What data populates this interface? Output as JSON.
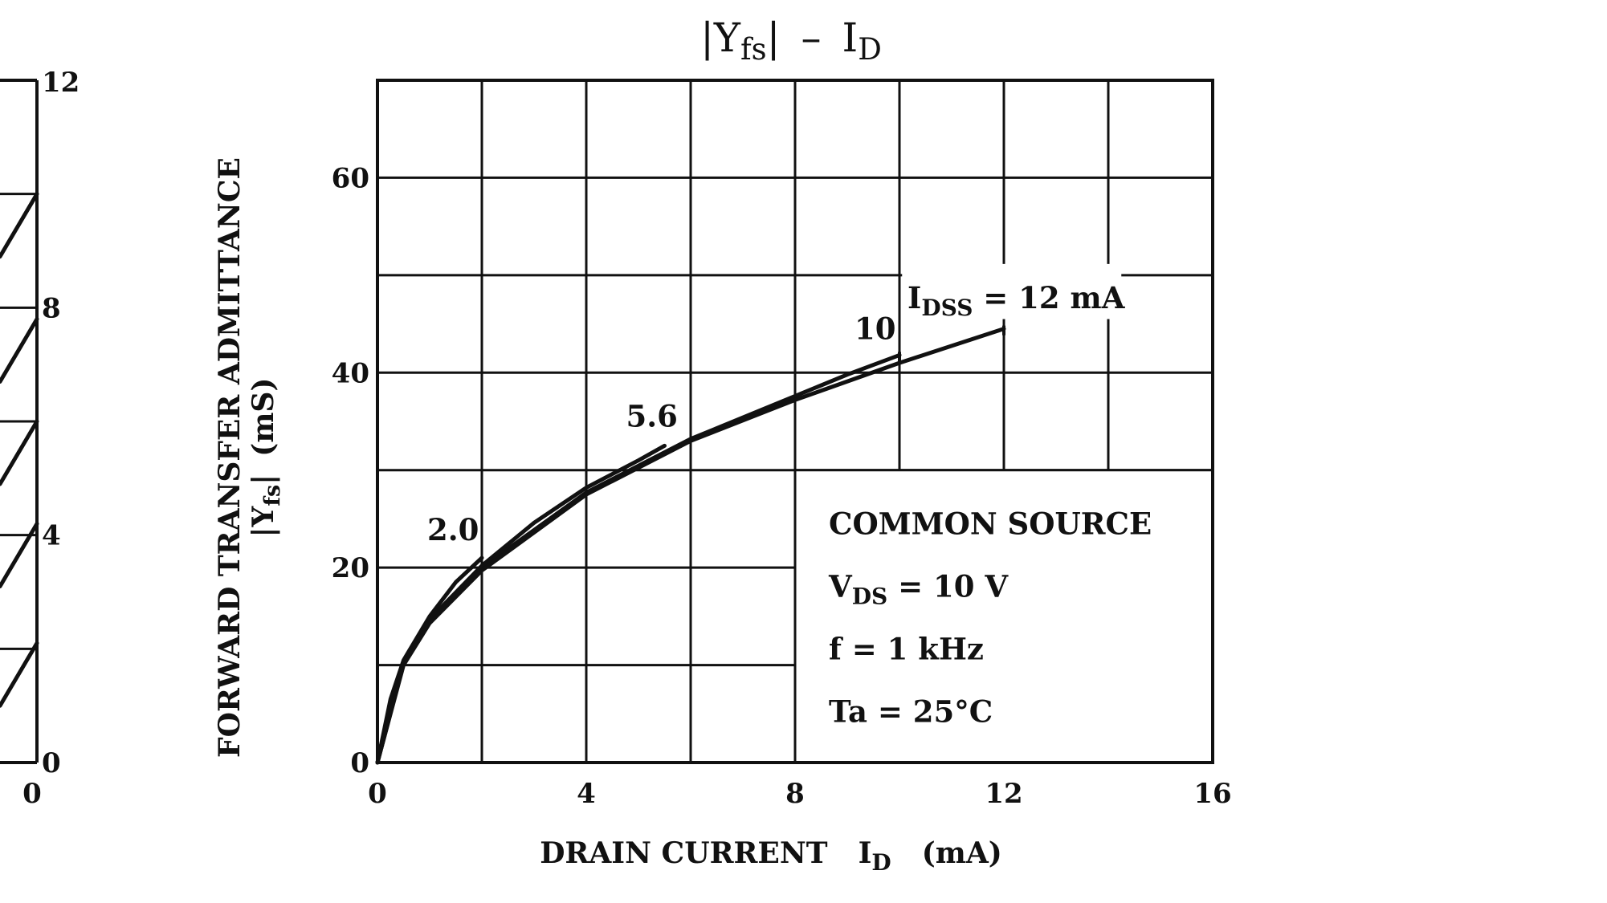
{
  "chart_data": {
    "type": "line",
    "title": "|Yfs| – ID",
    "title_parts": {
      "main": "|Y",
      "main_sub": "fs",
      "close": "|",
      "dash": "–",
      "right": "I",
      "right_sub": "D"
    },
    "xlabel_parts": {
      "text": "DRAIN CURRENT",
      "sym": "I",
      "sym_sub": "D",
      "unit": "(mA)"
    },
    "ylabel_parts": {
      "line1": "FORWARD TRANSFER ADMITTANCE",
      "sym": "|Y",
      "sym_sub": "fs",
      "sym_close": "|",
      "unit": "(mS)"
    },
    "xlim": [
      0,
      16
    ],
    "ylim": [
      0,
      70
    ],
    "x_ticks": [
      "0",
      "4",
      "8",
      "12",
      "16"
    ],
    "y_ticks": [
      "0",
      "20",
      "40",
      "60"
    ],
    "grid": true,
    "annotation_box": {
      "line1": "COMMON SOURCE",
      "line2_sym": "V",
      "line2_sub": "DS",
      "line2_rest": " = 10 V",
      "line3": "f = 1 kHz",
      "line4": "Ta = 25°C"
    },
    "idss_label": {
      "sym": "I",
      "sub": "DSS",
      "rest": " = 12 mA"
    },
    "series": [
      {
        "name": "2.0",
        "x": [
          0,
          0.25,
          0.5,
          1.0,
          1.5,
          2.0
        ],
        "y": [
          0,
          6.5,
          10.5,
          15.0,
          18.5,
          21.0
        ]
      },
      {
        "name": "5.6",
        "x": [
          0,
          0.5,
          1.0,
          2.0,
          3.0,
          4.0,
          5.0,
          5.5
        ],
        "y": [
          0,
          10.3,
          14.7,
          20.2,
          24.6,
          28.2,
          31.0,
          32.5
        ]
      },
      {
        "name": "10",
        "x": [
          0,
          0.5,
          1.0,
          2.0,
          4.0,
          6.0,
          8.0,
          9.0,
          10.0
        ],
        "y": [
          0,
          10.2,
          14.5,
          20.0,
          27.7,
          33.2,
          37.6,
          39.8,
          41.8
        ]
      },
      {
        "name": "12",
        "x": [
          0,
          0.5,
          1.0,
          2.0,
          4.0,
          6.0,
          8.0,
          10.0,
          12.0
        ],
        "y": [
          0,
          10.0,
          14.3,
          19.7,
          27.5,
          33.0,
          37.2,
          41.0,
          44.5
        ]
      }
    ],
    "left_partial_axis": {
      "ticks": [
        "12",
        "8",
        "4",
        "0"
      ],
      "x_tick": "0",
      "line_levels": [
        10.0,
        7.8,
        6.0,
        4.2,
        2.1
      ]
    }
  }
}
